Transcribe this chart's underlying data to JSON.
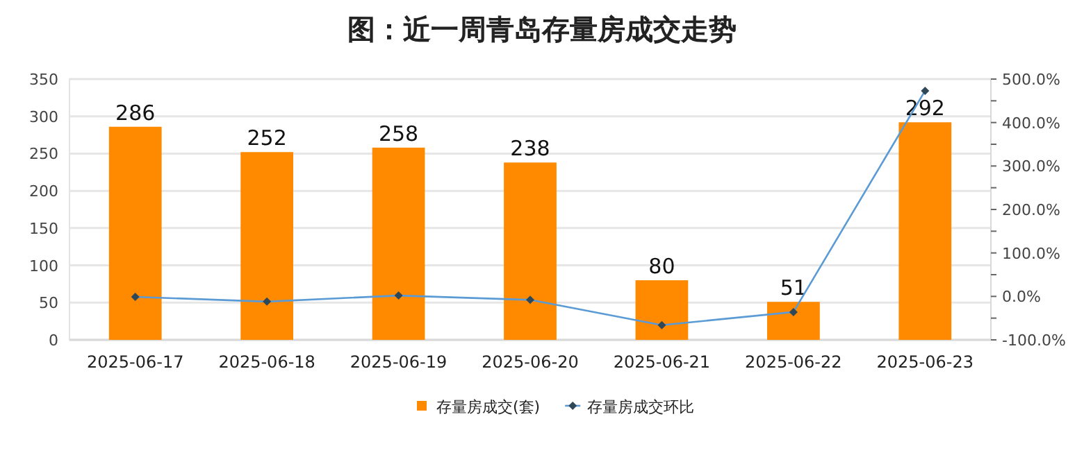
{
  "chart_data": {
    "type": "bar",
    "title": "图：近一周青岛存量房成交走势",
    "categories": [
      "2025-06-17",
      "2025-06-18",
      "2025-06-19",
      "2025-06-20",
      "2025-06-21",
      "2025-06-22",
      "2025-06-23"
    ],
    "series": [
      {
        "name": "存量房成交(套)",
        "color": "#ff8a00",
        "values": [
          286,
          252,
          258,
          238,
          80,
          51,
          292
        ],
        "value_labels": [
          "286",
          "252",
          "258",
          "238",
          "80",
          "51",
          "292"
        ]
      },
      {
        "name": "存量房成交环比",
        "type": "line",
        "axis": "y2",
        "color": "#5b9bd5",
        "marker": "diamond",
        "values": [
          -1,
          -12,
          2,
          -8,
          -66,
          -36,
          473
        ]
      }
    ],
    "ylim": [
      0,
      350
    ],
    "yticks": [
      0,
      50,
      100,
      150,
      200,
      250,
      300,
      350
    ],
    "y2lim": [
      -100,
      500
    ],
    "y2ticks": [
      {
        "value": -100,
        "label": "-100.0%"
      },
      {
        "value": -50,
        "label": null
      },
      {
        "value": 0,
        "label": "0.0%"
      },
      {
        "value": 50,
        "label": null
      },
      {
        "value": 100,
        "label": "100.0%"
      },
      {
        "value": 150,
        "label": null
      },
      {
        "value": 200,
        "label": "200.0%"
      },
      {
        "value": 250,
        "label": null
      },
      {
        "value": 300,
        "label": "300.0%"
      },
      {
        "value": 350,
        "label": null
      },
      {
        "value": 400,
        "label": "400.0%"
      },
      {
        "value": 450,
        "label": null
      },
      {
        "value": 500,
        "label": "500.0%"
      }
    ],
    "grid": "y",
    "legend": "bottom"
  }
}
